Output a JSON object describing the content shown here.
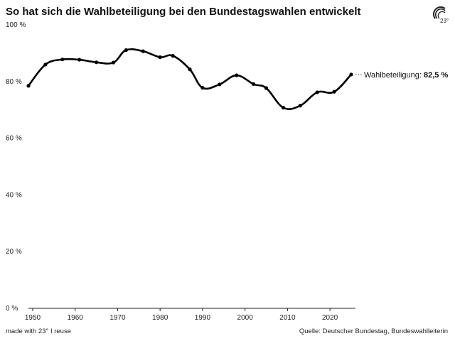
{
  "title": "So hat sich die Wahlbeteiligung bei den Bundestagswahlen entwickelt",
  "logo": {
    "icon": "brand-23-logo-icon",
    "text": "23°"
  },
  "footer": {
    "made_with": "made with 23° I reuse",
    "source": "Quelle: Deutscher Bundestag, Bundeswahlleiterin"
  },
  "colors": {
    "line": "#000000",
    "gridline": "#eeeeee",
    "text": "#111111"
  },
  "chart_data": {
    "type": "line",
    "title": "So hat sich die Wahlbeteiligung bei den Bundestagswahlen entwickelt",
    "xlabel": "",
    "ylabel": "",
    "xlim": [
      1948,
      2026
    ],
    "ylim": [
      0,
      100
    ],
    "x_ticks": [
      1950,
      1960,
      1970,
      1980,
      1990,
      2000,
      2010,
      2020
    ],
    "y_ticks": [
      0,
      20,
      40,
      60,
      80,
      100
    ],
    "y_tick_labels": [
      "0 %",
      "20 %",
      "40 %",
      "60 %",
      "80 %",
      "100 %"
    ],
    "grid": false,
    "series": [
      {
        "x": [
          1949,
          1953,
          1957,
          1961,
          1965,
          1969,
          1972,
          1976,
          1980,
          1983,
          1987,
          1990,
          1994,
          1998,
          2002,
          2005,
          2009,
          2013,
          2017,
          2021,
          2025
        ],
        "values": [
          78.5,
          86.0,
          87.8,
          87.7,
          86.8,
          86.7,
          91.1,
          90.7,
          88.6,
          89.1,
          84.3,
          77.8,
          79.0,
          82.2,
          79.1,
          77.7,
          70.8,
          71.5,
          76.2,
          76.4,
          82.5
        ]
      }
    ],
    "annotation": {
      "label": "Wahlbeteiligung:",
      "value": "82,5 %"
    }
  }
}
